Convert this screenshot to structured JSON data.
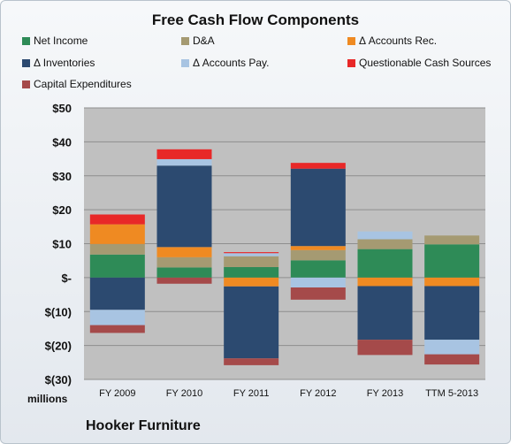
{
  "chart_data": {
    "type": "bar",
    "stacked": true,
    "title": "Free Cash Flow Components",
    "categories": [
      "FY 2009",
      "FY 2010",
      "FY 2011",
      "FY 2012",
      "FY 2013",
      "TTM 5-2013"
    ],
    "y_ticks": [
      "$50",
      "$40",
      "$30",
      "$20",
      "$10",
      "$-",
      "$(10)",
      "$(20)",
      "$(30)"
    ],
    "ylim": [
      -30,
      50
    ],
    "grid": true,
    "legend_position": "top",
    "units_label": "millions",
    "company": "Hooker Furniture",
    "plot_background": "#c0c0c0",
    "series": [
      {
        "name": "Net Income",
        "color": "#2e8b57",
        "values": [
          6.8,
          3.0,
          3.1,
          5.1,
          8.4,
          9.8
        ]
      },
      {
        "name": "D&A",
        "color": "#a59a72",
        "values": [
          3.1,
          3.0,
          3.2,
          3.0,
          2.9,
          2.6
        ]
      },
      {
        "name": "Δ Accounts Rec.",
        "color": "#ef8a22",
        "values": [
          5.8,
          3.0,
          -2.6,
          1.2,
          -2.5,
          -2.5
        ]
      },
      {
        "name": "Δ Inventories",
        "color": "#2c4a70",
        "values": [
          -9.5,
          24.0,
          -21.2,
          22.8,
          -15.8,
          -15.8
        ]
      },
      {
        "name": "Δ Accounts Pay.",
        "color": "#a8c4e2",
        "values": [
          -4.5,
          1.9,
          0.9,
          -2.9,
          2.3,
          -4.3
        ]
      },
      {
        "name": "Questionable Cash Sources",
        "color": "#e82828",
        "values": [
          2.9,
          2.9,
          0.3,
          1.7,
          0,
          0
        ]
      },
      {
        "name": "Capital Expenditures",
        "color": "#a54a4a",
        "values": [
          -2.3,
          -1.8,
          -2.0,
          -3.6,
          -4.5,
          -3.0
        ]
      }
    ]
  }
}
